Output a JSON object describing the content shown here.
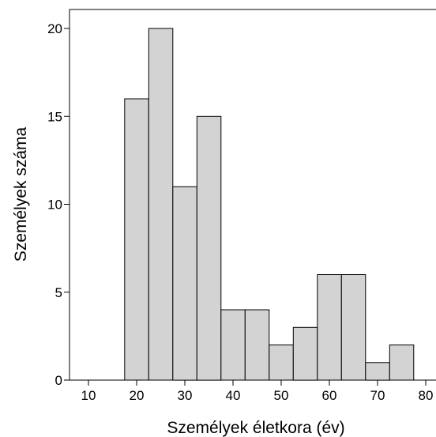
{
  "chart_data": {
    "type": "bar",
    "subtype": "histogram",
    "title": "",
    "xlabel": "Személyek életkora (év)",
    "ylabel": "Személyek száma",
    "xlim": [
      5,
      80
    ],
    "ylim": [
      0,
      21
    ],
    "x_ticks": [
      10,
      20,
      30,
      40,
      50,
      60,
      70,
      80
    ],
    "y_ticks": [
      0,
      5,
      10,
      15,
      20
    ],
    "bins": [
      {
        "start": 17.5,
        "end": 22.5,
        "value": 16
      },
      {
        "start": 22.5,
        "end": 27.5,
        "value": 20
      },
      {
        "start": 27.5,
        "end": 32.5,
        "value": 11
      },
      {
        "start": 32.5,
        "end": 37.5,
        "value": 15
      },
      {
        "start": 37.5,
        "end": 42.5,
        "value": 4
      },
      {
        "start": 42.5,
        "end": 47.5,
        "value": 4
      },
      {
        "start": 47.5,
        "end": 52.5,
        "value": 2
      },
      {
        "start": 52.5,
        "end": 57.5,
        "value": 3
      },
      {
        "start": 57.5,
        "end": 62.5,
        "value": 6
      },
      {
        "start": 62.5,
        "end": 67.5,
        "value": 6
      },
      {
        "start": 67.5,
        "end": 72.5,
        "value": 1
      },
      {
        "start": 72.5,
        "end": 77.5,
        "value": 2
      }
    ],
    "bar_color": "#d3d3d3",
    "edge_color": "#000000",
    "grid": false,
    "legend": "none"
  }
}
